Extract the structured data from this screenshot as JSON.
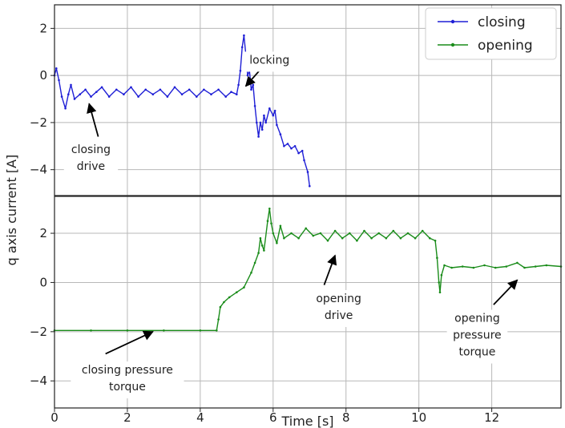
{
  "chart_data": {
    "type": "line",
    "xlabel": "Time [s]",
    "ylabel": "q axis current [A]",
    "xlim": [
      0,
      13.9
    ],
    "x_ticks": [
      0,
      2,
      4,
      6,
      8,
      10,
      12
    ],
    "x_tick_labels": [
      "0",
      "2",
      "4",
      "6",
      "8",
      "10",
      "12"
    ],
    "grid": true,
    "legend_position": "top-right",
    "panels": [
      {
        "id": "top",
        "ylim": [
          -5.1,
          3.0
        ],
        "y_ticks": [
          -4,
          -2,
          0,
          2
        ],
        "y_tick_labels": [
          "−4",
          "−2",
          "0",
          "2"
        ],
        "series": [
          {
            "name": "closing",
            "color": "#1f1fd6",
            "marker": "dot",
            "points": [
              [
                0.0,
                0.0
              ],
              [
                0.05,
                0.3
              ],
              [
                0.12,
                -0.2
              ],
              [
                0.2,
                -0.9
              ],
              [
                0.3,
                -1.4
              ],
              [
                0.38,
                -0.8
              ],
              [
                0.45,
                -0.4
              ],
              [
                0.55,
                -1.0
              ],
              [
                0.7,
                -0.8
              ],
              [
                0.85,
                -0.6
              ],
              [
                1.0,
                -0.9
              ],
              [
                1.15,
                -0.7
              ],
              [
                1.3,
                -0.5
              ],
              [
                1.5,
                -0.9
              ],
              [
                1.7,
                -0.6
              ],
              [
                1.9,
                -0.8
              ],
              [
                2.1,
                -0.5
              ],
              [
                2.3,
                -0.9
              ],
              [
                2.5,
                -0.6
              ],
              [
                2.7,
                -0.8
              ],
              [
                2.9,
                -0.6
              ],
              [
                3.1,
                -0.9
              ],
              [
                3.3,
                -0.5
              ],
              [
                3.5,
                -0.8
              ],
              [
                3.7,
                -0.6
              ],
              [
                3.9,
                -0.9
              ],
              [
                4.1,
                -0.6
              ],
              [
                4.3,
                -0.8
              ],
              [
                4.5,
                -0.6
              ],
              [
                4.7,
                -0.9
              ],
              [
                4.85,
                -0.7
              ],
              [
                5.0,
                -0.8
              ],
              [
                5.05,
                -0.4
              ],
              [
                5.1,
                0.2
              ],
              [
                5.15,
                1.2
              ],
              [
                5.2,
                1.7
              ],
              [
                5.25,
                0.9
              ],
              [
                5.3,
                0.0
              ],
              [
                5.35,
                0.2
              ],
              [
                5.4,
                -0.6
              ],
              [
                5.45,
                -0.4
              ],
              [
                5.5,
                -1.3
              ],
              [
                5.55,
                -2.0
              ],
              [
                5.6,
                -2.6
              ],
              [
                5.65,
                -2.0
              ],
              [
                5.7,
                -2.3
              ],
              [
                5.75,
                -1.7
              ],
              [
                5.8,
                -2.0
              ],
              [
                5.9,
                -1.4
              ],
              [
                6.0,
                -1.7
              ],
              [
                6.05,
                -1.5
              ],
              [
                6.1,
                -2.1
              ],
              [
                6.2,
                -2.5
              ],
              [
                6.3,
                -3.0
              ],
              [
                6.4,
                -2.9
              ],
              [
                6.5,
                -3.1
              ],
              [
                6.6,
                -3.0
              ],
              [
                6.7,
                -3.3
              ],
              [
                6.8,
                -3.2
              ],
              [
                6.85,
                -3.6
              ],
              [
                6.95,
                -4.1
              ],
              [
                7.0,
                -4.7
              ]
            ]
          }
        ],
        "annotations": [
          {
            "lines": [
              "locking"
            ],
            "text_at": [
              5.9,
              0.5
            ],
            "arrow_from": [
              5.65,
              0.25
            ],
            "arrow_to": [
              5.25,
              -0.45
            ]
          },
          {
            "lines": [
              "closing",
              "drive"
            ],
            "text_at": [
              1.0,
              -3.3
            ],
            "arrow_from": [
              1.2,
              -2.6
            ],
            "arrow_to": [
              0.95,
              -1.2
            ]
          }
        ]
      },
      {
        "id": "bottom",
        "ylim": [
          -5.1,
          3.5
        ],
        "y_ticks": [
          -4,
          -2,
          0,
          2
        ],
        "y_tick_labels": [
          "−4",
          "−2",
          "0",
          "2"
        ],
        "series": [
          {
            "name": "opening",
            "color": "#1a8c1a",
            "marker": "dot",
            "points": [
              [
                0.0,
                -1.95
              ],
              [
                1.0,
                -1.95
              ],
              [
                2.0,
                -1.95
              ],
              [
                3.0,
                -1.95
              ],
              [
                4.0,
                -1.95
              ],
              [
                4.45,
                -1.95
              ],
              [
                4.5,
                -1.5
              ],
              [
                4.55,
                -1.0
              ],
              [
                4.65,
                -0.8
              ],
              [
                4.8,
                -0.6
              ],
              [
                5.0,
                -0.4
              ],
              [
                5.2,
                -0.2
              ],
              [
                5.4,
                0.4
              ],
              [
                5.5,
                0.8
              ],
              [
                5.6,
                1.2
              ],
              [
                5.65,
                1.8
              ],
              [
                5.7,
                1.5
              ],
              [
                5.75,
                1.3
              ],
              [
                5.85,
                2.5
              ],
              [
                5.9,
                3.0
              ],
              [
                5.95,
                2.4
              ],
              [
                6.0,
                2.0
              ],
              [
                6.1,
                1.6
              ],
              [
                6.2,
                2.3
              ],
              [
                6.3,
                1.8
              ],
              [
                6.5,
                2.0
              ],
              [
                6.7,
                1.8
              ],
              [
                6.9,
                2.2
              ],
              [
                7.1,
                1.9
              ],
              [
                7.3,
                2.0
              ],
              [
                7.5,
                1.7
              ],
              [
                7.7,
                2.1
              ],
              [
                7.9,
                1.8
              ],
              [
                8.1,
                2.0
              ],
              [
                8.3,
                1.7
              ],
              [
                8.5,
                2.1
              ],
              [
                8.7,
                1.8
              ],
              [
                8.9,
                2.0
              ],
              [
                9.1,
                1.8
              ],
              [
                9.3,
                2.1
              ],
              [
                9.5,
                1.8
              ],
              [
                9.7,
                2.0
              ],
              [
                9.9,
                1.8
              ],
              [
                10.1,
                2.1
              ],
              [
                10.3,
                1.8
              ],
              [
                10.45,
                1.7
              ],
              [
                10.5,
                1.0
              ],
              [
                10.55,
                0.0
              ],
              [
                10.58,
                -0.4
              ],
              [
                10.62,
                0.3
              ],
              [
                10.7,
                0.7
              ],
              [
                10.9,
                0.6
              ],
              [
                11.2,
                0.65
              ],
              [
                11.5,
                0.6
              ],
              [
                11.8,
                0.7
              ],
              [
                12.1,
                0.6
              ],
              [
                12.4,
                0.65
              ],
              [
                12.7,
                0.8
              ],
              [
                12.9,
                0.6
              ],
              [
                13.2,
                0.65
              ],
              [
                13.5,
                0.7
              ],
              [
                13.9,
                0.65
              ]
            ]
          }
        ],
        "annotations": [
          {
            "lines": [
              "opening",
              "drive"
            ],
            "text_at": [
              7.8,
              -0.8
            ],
            "arrow_from": [
              7.4,
              -0.1
            ],
            "arrow_to": [
              7.7,
              1.1
            ]
          },
          {
            "lines": [
              "opening",
              "pressure",
              "torque"
            ],
            "text_at": [
              11.6,
              -1.6
            ],
            "arrow_from": [
              12.05,
              -0.9
            ],
            "arrow_to": [
              12.7,
              0.1
            ]
          },
          {
            "lines": [
              "closing pressure",
              "torque"
            ],
            "text_at": [
              2.0,
              -3.7
            ],
            "arrow_from": [
              1.4,
              -2.9
            ],
            "arrow_to": [
              2.7,
              -2.0
            ]
          }
        ]
      }
    ]
  }
}
